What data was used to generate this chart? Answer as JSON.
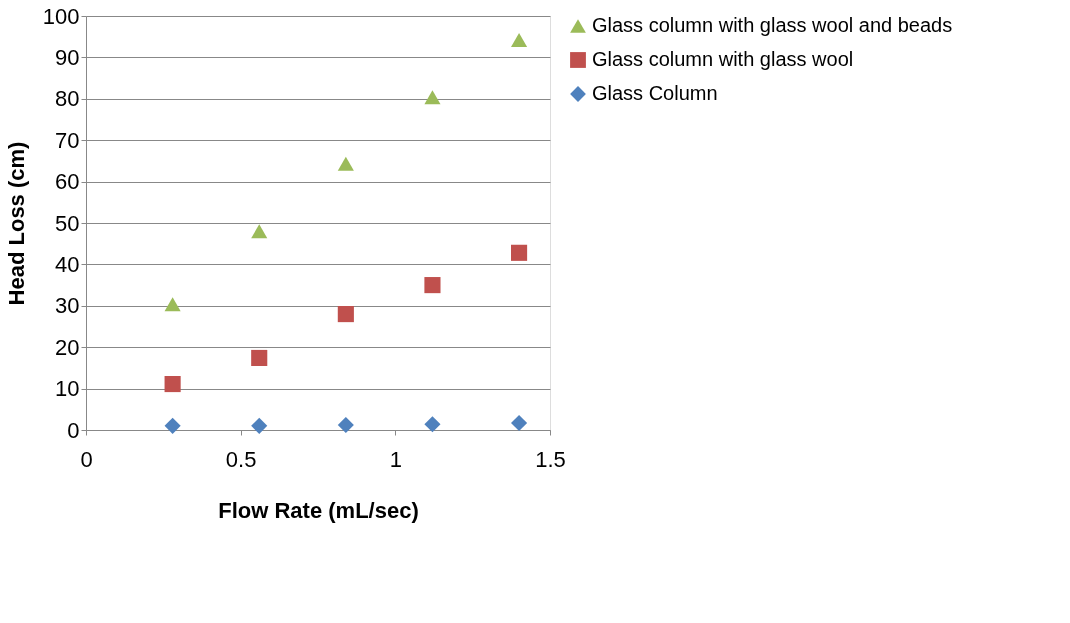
{
  "chart_data": {
    "type": "scatter",
    "xlabel": "Flow Rate (mL/sec)",
    "ylabel": "Head Loss (cm)",
    "x": [
      0.28,
      0.56,
      0.84,
      1.12,
      1.4
    ],
    "series": [
      {
        "name": "Glass column with glass wool and beads",
        "color": "#9bbb59",
        "marker": "triangle",
        "values": [
          30.4,
          48,
          64.3,
          80.4,
          94.2
        ]
      },
      {
        "name": "Glass column with glass wool",
        "color": "#c0504d",
        "marker": "square",
        "values": [
          11.1,
          17.4,
          28,
          35,
          42.8
        ]
      },
      {
        "name": "Glass Column",
        "color": "#4f81bd",
        "marker": "diamond",
        "values": [
          1,
          1,
          1.2,
          1.4,
          1.7
        ]
      }
    ],
    "xlim": [
      0,
      1.5
    ],
    "xticks": [
      0,
      0.5,
      1,
      1.5
    ],
    "ylim": [
      0,
      100
    ],
    "yticks": [
      0,
      10,
      20,
      30,
      40,
      50,
      60,
      70,
      80,
      90,
      100
    ],
    "grid": "y",
    "legend": "right"
  }
}
